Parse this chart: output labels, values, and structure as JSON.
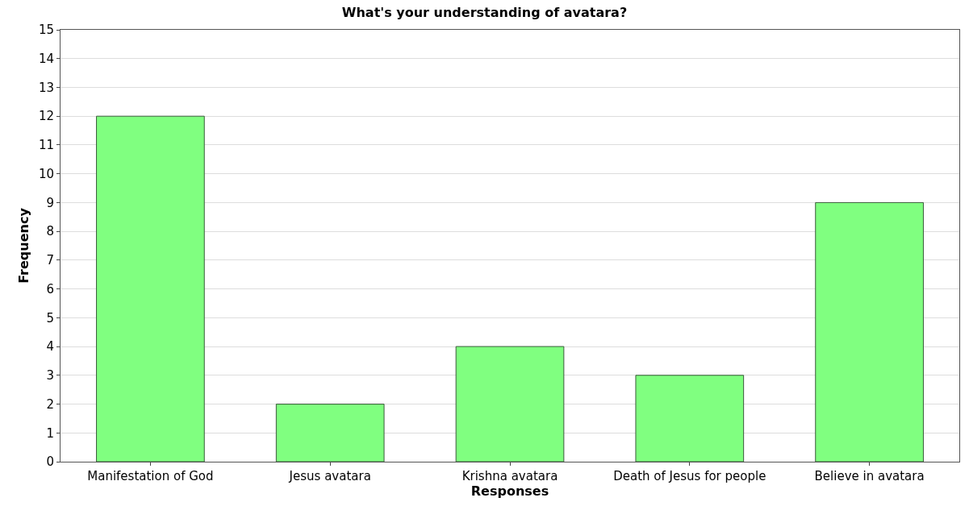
{
  "chart_data": {
    "type": "bar",
    "title": "What's your understanding of avatara?",
    "xlabel": "Responses",
    "ylabel": "Frequency",
    "categories": [
      "Manifestation of God",
      "Jesus avatara",
      "Krishna avatara",
      "Death of Jesus for people",
      "Believe in avatara"
    ],
    "values": [
      12,
      2,
      4,
      3,
      9
    ],
    "color": "#80ff80",
    "ylim": [
      0,
      15
    ],
    "yticks": [
      0,
      1,
      2,
      3,
      4,
      5,
      6,
      7,
      8,
      9,
      10,
      11,
      12,
      13,
      14,
      15
    ],
    "grid": "y"
  }
}
